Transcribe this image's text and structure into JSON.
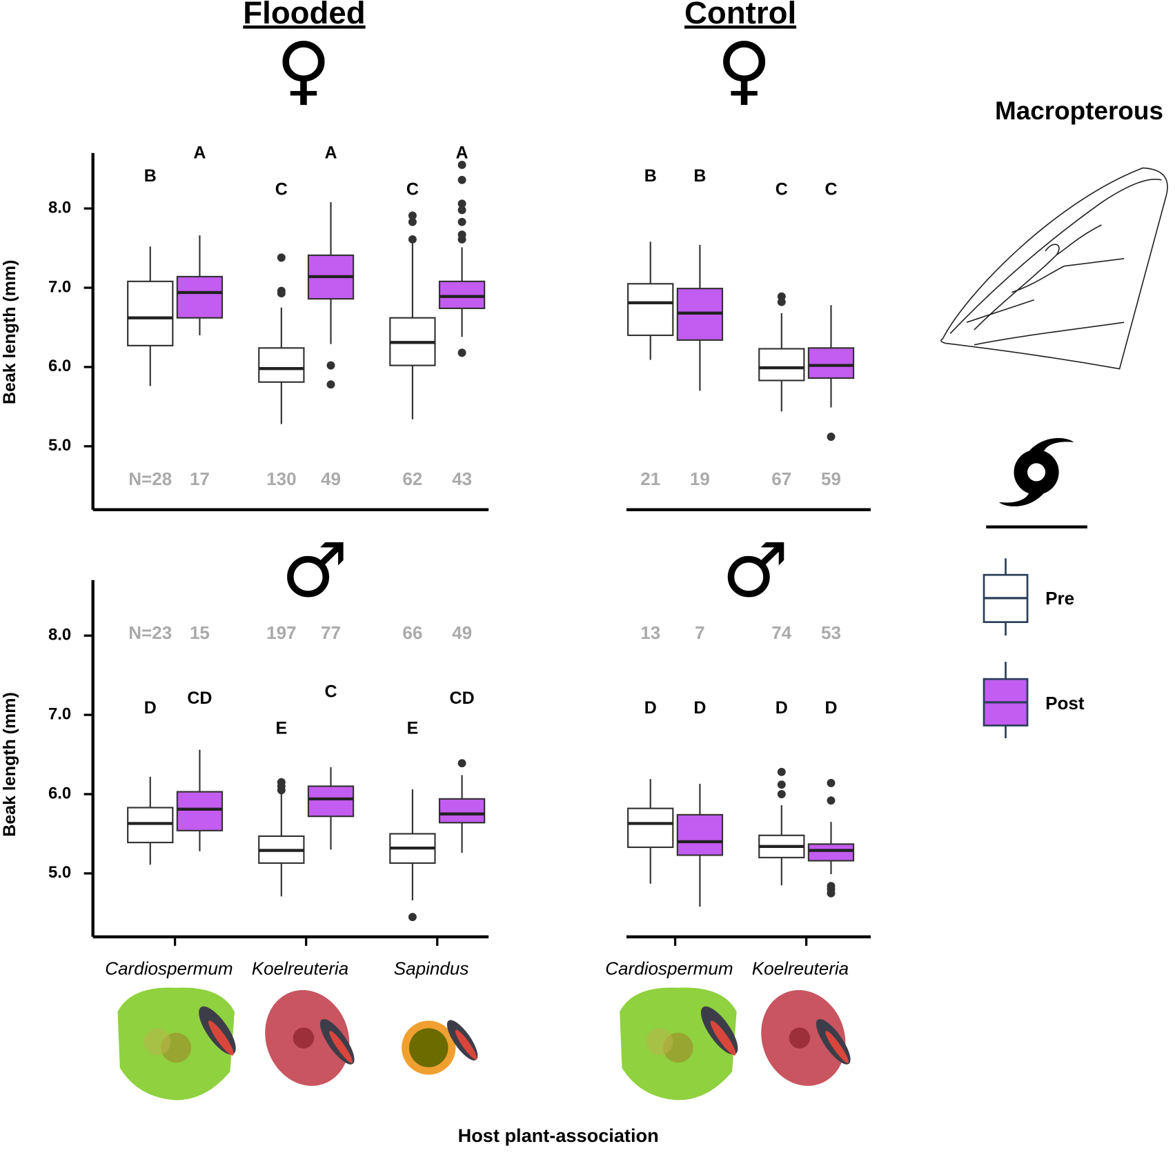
{
  "chart_data": [
    {
      "type": "box",
      "title": "Flooded",
      "subtitle": "♀",
      "ylabel": "Beak length (mm)",
      "categories": [
        null,
        null,
        null
      ],
      "ylim": [
        4.2,
        8.7
      ],
      "yticks": [
        {
          "value": 5,
          "label": "5.0"
        },
        {
          "value": 6,
          "label": "6.0"
        },
        {
          "value": 7,
          "label": "7.0"
        },
        {
          "value": 8,
          "label": "8.0"
        }
      ],
      "n_labels": [
        "N=28",
        "17",
        "130",
        "49",
        "62",
        "43"
      ],
      "letters": [
        "B",
        "A",
        "C",
        "A",
        "C",
        "A"
      ],
      "series": [
        {
          "color": "#ffffff",
          "whislo": [
            5.76,
            5.28,
            5.34
          ],
          "q1": [
            6.27,
            5.81,
            6.02
          ],
          "med": [
            6.62,
            5.98,
            6.31
          ],
          "q3": [
            7.08,
            6.24,
            6.62
          ],
          "whishi": [
            7.52,
            6.75,
            7.56
          ],
          "fliers": [
            [],
            [
              7.38,
              6.96,
              6.93
            ],
            [
              7.91,
              7.83,
              7.61
            ]
          ]
        },
        {
          "color": "#c35cf0",
          "whislo": [
            6.4,
            6.29,
            6.38
          ],
          "q1": [
            6.62,
            6.86,
            6.74
          ],
          "med": [
            6.94,
            7.14,
            6.89
          ],
          "q3": [
            7.14,
            7.41,
            7.08
          ],
          "whishi": [
            7.66,
            8.08,
            7.51
          ],
          "fliers": [
            [],
            [
              6.02,
              5.78
            ],
            [
              8.55,
              8.36,
              8.06,
              7.98,
              7.83,
              7.67,
              7.61,
              6.18
            ]
          ]
        }
      ]
    },
    {
      "type": "box",
      "title": "Control",
      "subtitle": "♀",
      "categories": [
        null,
        null
      ],
      "ylim": [
        4.2,
        8.7
      ],
      "n_labels": [
        "21",
        "19",
        "67",
        "59"
      ],
      "letters": [
        "B",
        "B",
        "C",
        "C"
      ],
      "series": [
        {
          "color": "#ffffff",
          "whislo": [
            6.09,
            5.44
          ],
          "q1": [
            6.4,
            5.83
          ],
          "med": [
            6.81,
            5.99
          ],
          "q3": [
            7.05,
            6.23
          ],
          "whishi": [
            7.58,
            6.68
          ],
          "fliers": [
            [],
            [
              6.89,
              6.82
            ]
          ]
        },
        {
          "color": "#c35cf0",
          "whislo": [
            5.7,
            5.49
          ],
          "q1": [
            6.34,
            5.86
          ],
          "med": [
            6.68,
            6.02
          ],
          "q3": [
            6.99,
            6.24
          ],
          "whishi": [
            7.54,
            6.78
          ],
          "fliers": [
            [],
            [
              5.12
            ]
          ]
        }
      ]
    },
    {
      "type": "box",
      "subtitle": "♂",
      "ylabel": "Beak length (mm)",
      "categories": [
        "Cardiospermum",
        "Koelreuteria",
        "Sapindus"
      ],
      "ylim": [
        4.2,
        8.7
      ],
      "yticks": [
        {
          "value": 5,
          "label": "5.0"
        },
        {
          "value": 6,
          "label": "6.0"
        },
        {
          "value": 7,
          "label": "7.0"
        },
        {
          "value": 8,
          "label": "8.0"
        }
      ],
      "n_labels": [
        "N=23",
        "15",
        "197",
        "77",
        "66",
        "49"
      ],
      "letters": [
        "D",
        "CD",
        "E",
        "C",
        "E",
        "CD"
      ],
      "series": [
        {
          "color": "#ffffff",
          "whislo": [
            5.11,
            4.71,
            4.66
          ],
          "q1": [
            5.39,
            5.13,
            5.13
          ],
          "med": [
            5.63,
            5.29,
            5.32
          ],
          "q3": [
            5.83,
            5.47,
            5.5
          ],
          "whishi": [
            6.22,
            6.0,
            6.06
          ],
          "fliers": [
            [],
            [
              6.15,
              6.1,
              6.05
            ],
            [
              4.45
            ]
          ]
        },
        {
          "color": "#c35cf0",
          "whislo": [
            5.28,
            5.3,
            5.26
          ],
          "q1": [
            5.54,
            5.72,
            5.64
          ],
          "med": [
            5.81,
            5.94,
            5.75
          ],
          "q3": [
            6.03,
            6.1,
            5.94
          ],
          "whishi": [
            6.56,
            6.34,
            6.24
          ],
          "fliers": [
            [],
            [],
            [
              6.39
            ]
          ]
        }
      ]
    },
    {
      "type": "box",
      "subtitle": "♂",
      "categories": [
        "Cardiospermum",
        "Koelreuteria"
      ],
      "ylim": [
        4.2,
        8.7
      ],
      "n_labels": [
        "13",
        "7",
        "74",
        "53"
      ],
      "letters": [
        "D",
        "D",
        "D",
        "D"
      ],
      "series": [
        {
          "color": "#ffffff",
          "whislo": [
            4.87,
            4.85
          ],
          "q1": [
            5.33,
            5.2
          ],
          "med": [
            5.63,
            5.34
          ],
          "q3": [
            5.82,
            5.48
          ],
          "whishi": [
            6.19,
            5.86
          ],
          "fliers": [
            [],
            [
              6.28,
              6.12,
              6.0
            ]
          ]
        },
        {
          "color": "#c35cf0",
          "whislo": [
            4.58,
            4.99
          ],
          "q1": [
            5.23,
            5.16
          ],
          "med": [
            5.4,
            5.29
          ],
          "q3": [
            5.74,
            5.37
          ],
          "whishi": [
            6.13,
            5.65
          ],
          "fliers": [
            [],
            [
              6.14,
              5.92,
              4.84,
              4.8,
              4.75
            ]
          ]
        }
      ]
    }
  ],
  "x_label": "Host plant-association",
  "legend": {
    "title": "Macropterous",
    "entries": [
      {
        "name": "Pre",
        "color": "#ffffff"
      },
      {
        "name": "Post",
        "color": "#c35cf0"
      }
    ]
  }
}
